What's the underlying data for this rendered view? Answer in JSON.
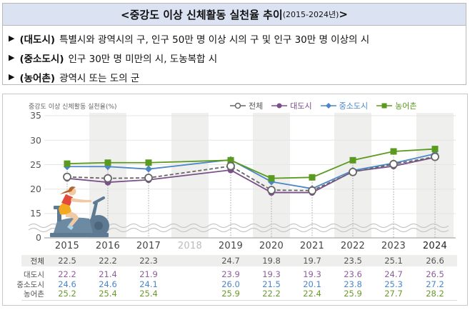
{
  "header": {
    "title_main": "<중강도 이상 신체활동 실천율 추이",
    "title_sub": "(2015-2024년)",
    "title_close": ">"
  },
  "definitions": [
    {
      "bullet": "▶",
      "term": "(대도시)",
      "desc": "특별시와 광역시의 구, 인구 50만 명 이상 시의 구 및 인구 30만 명 이상의 시"
    },
    {
      "bullet": "▶",
      "term": "(중소도시)",
      "desc": "인구 30만 명 미만의 시, 도농복합 시"
    },
    {
      "bullet": "▶",
      "term": "(농어촌)",
      "desc": "광역시 또는 도의 군"
    }
  ],
  "colors": {
    "total": "#666666",
    "metro": "#7a4f8a",
    "small_city": "#4a86c8",
    "rural": "#5a9a1e",
    "band": "#efefed",
    "title_bg": "#dbe3f3"
  },
  "table": {
    "row_labels": [
      "전체",
      "대도시",
      "중소도시",
      "농어촌"
    ]
  },
  "chart_data": {
    "type": "line",
    "title": "중강도 이상 신체활동 실천율 추이(2015-2024년)",
    "ylabel": "중강도 이상 신체활동 실천율(%)",
    "xlabel": "",
    "x": [
      "2015",
      "2016",
      "2017",
      "2018",
      "2019",
      "2020",
      "2021",
      "2022",
      "2023",
      "2024"
    ],
    "yticks": [
      "35",
      "30",
      "25",
      "20",
      "15",
      "0"
    ],
    "ylim": [
      0,
      35
    ],
    "axis_break": "between 0 and 15",
    "grid": true,
    "legend_position": "top-right",
    "series": [
      {
        "name": "전체",
        "key": "total",
        "marker": "open-circle",
        "line": "dashed",
        "values": [
          22.5,
          22.2,
          22.3,
          null,
          24.7,
          19.8,
          19.7,
          23.5,
          25.1,
          26.6
        ]
      },
      {
        "name": "대도시",
        "key": "metro",
        "marker": "circle",
        "line": "solid",
        "values": [
          22.2,
          21.4,
          21.9,
          null,
          23.9,
          19.3,
          19.3,
          23.6,
          24.7,
          26.5
        ]
      },
      {
        "name": "중소도시",
        "key": "small_city",
        "marker": "diamond",
        "line": "solid",
        "values": [
          24.6,
          24.6,
          24.1,
          null,
          26.0,
          21.5,
          20.1,
          23.8,
          25.3,
          27.2
        ]
      },
      {
        "name": "농어촌",
        "key": "rural",
        "marker": "square",
        "line": "solid",
        "values": [
          25.2,
          25.4,
          25.4,
          null,
          25.9,
          22.2,
          22.4,
          25.9,
          27.7,
          28.2
        ]
      }
    ],
    "table_values": {
      "total": [
        "22.5",
        "22.2",
        "22.3",
        "",
        "24.7",
        "19.8",
        "19.7",
        "23.5",
        "25.1",
        "26.6"
      ],
      "metro": [
        "22.2",
        "21.4",
        "21.9",
        "",
        "23.9",
        "19.3",
        "19.3",
        "23.6",
        "24.7",
        "26.5"
      ],
      "small_city": [
        "24.6",
        "24.6",
        "24.1",
        "",
        "26.0",
        "21.5",
        "20.1",
        "23.8",
        "25.3",
        "27.2"
      ],
      "rural": [
        "25.2",
        "25.4",
        "25.4",
        "",
        "25.9",
        "22.2",
        "22.4",
        "25.9",
        "27.7",
        "28.2"
      ]
    }
  }
}
